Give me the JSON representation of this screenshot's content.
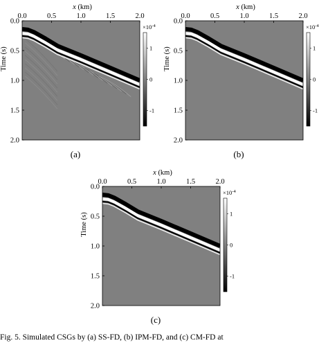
{
  "figure": {
    "panels": [
      {
        "id": "a",
        "label": "(a)",
        "scheme": "artifacts"
      },
      {
        "id": "b",
        "label": "(b)",
        "scheme": "clean"
      },
      {
        "id": "c",
        "label": "(c)",
        "scheme": "clean"
      }
    ],
    "xaxis": {
      "label_italic": "x",
      "label_unit": " (km)",
      "ticks": [
        "0.0",
        "0.5",
        "1.0",
        "1.5",
        "2.0"
      ],
      "range": [
        0,
        2.0
      ]
    },
    "yaxis": {
      "label": "Time (s)",
      "ticks": [
        "0.0",
        "0.5",
        "1.0",
        "1.5",
        "2.0"
      ],
      "range": [
        0,
        2.0
      ]
    },
    "colorbar": {
      "exponent_base": "×10",
      "exponent_power": "-4",
      "ticks": [
        "1",
        "0",
        "-1"
      ],
      "range": [
        -1.5,
        1.5
      ]
    },
    "caption": "Fig. 5.   Simulated CSGs by (a) SS-FD, (b) IPM-FD, and (c) CM-FD at",
    "colors": {
      "background": "#808080",
      "wave_dark": "#000000",
      "wave_light": "#ffffff"
    }
  }
}
